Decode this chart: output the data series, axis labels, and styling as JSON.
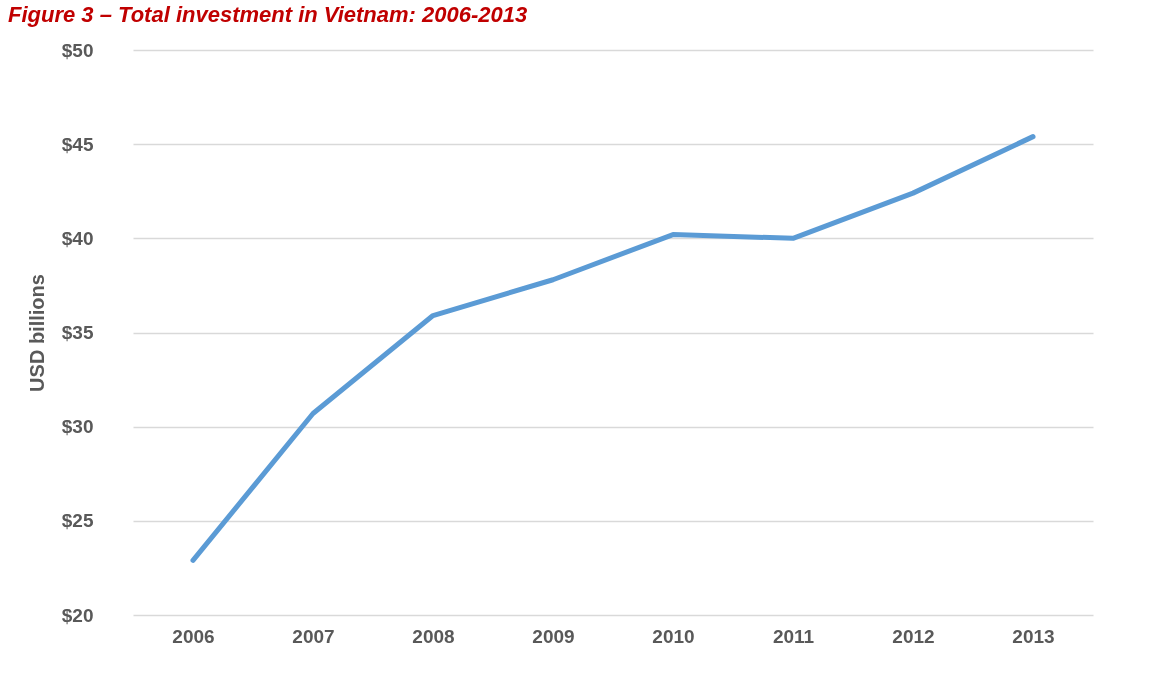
{
  "chart_data": {
    "type": "line",
    "title": "Figure 3 – Total investment in Vietnam: 2006-2013",
    "ylabel": "USD billions",
    "categories": [
      "2006",
      "2007",
      "2008",
      "2009",
      "2010",
      "2011",
      "2012",
      "2013"
    ],
    "series": [
      {
        "color": "#5b9bd5",
        "values": [
          22.9,
          30.7,
          35.9,
          37.8,
          40.2,
          40.0,
          42.4,
          45.4
        ]
      }
    ],
    "ylim": [
      20,
      50
    ],
    "yticks": [
      {
        "value": 20,
        "label": "$20"
      },
      {
        "value": 25,
        "label": "$25"
      },
      {
        "value": 30,
        "label": "$30"
      },
      {
        "value": 35,
        "label": "$35"
      },
      {
        "value": 40,
        "label": "$40"
      },
      {
        "value": 45,
        "label": "$45"
      },
      {
        "value": 50,
        "label": "$50"
      }
    ],
    "grid": "y",
    "marker": "none",
    "line_style": "solid"
  }
}
